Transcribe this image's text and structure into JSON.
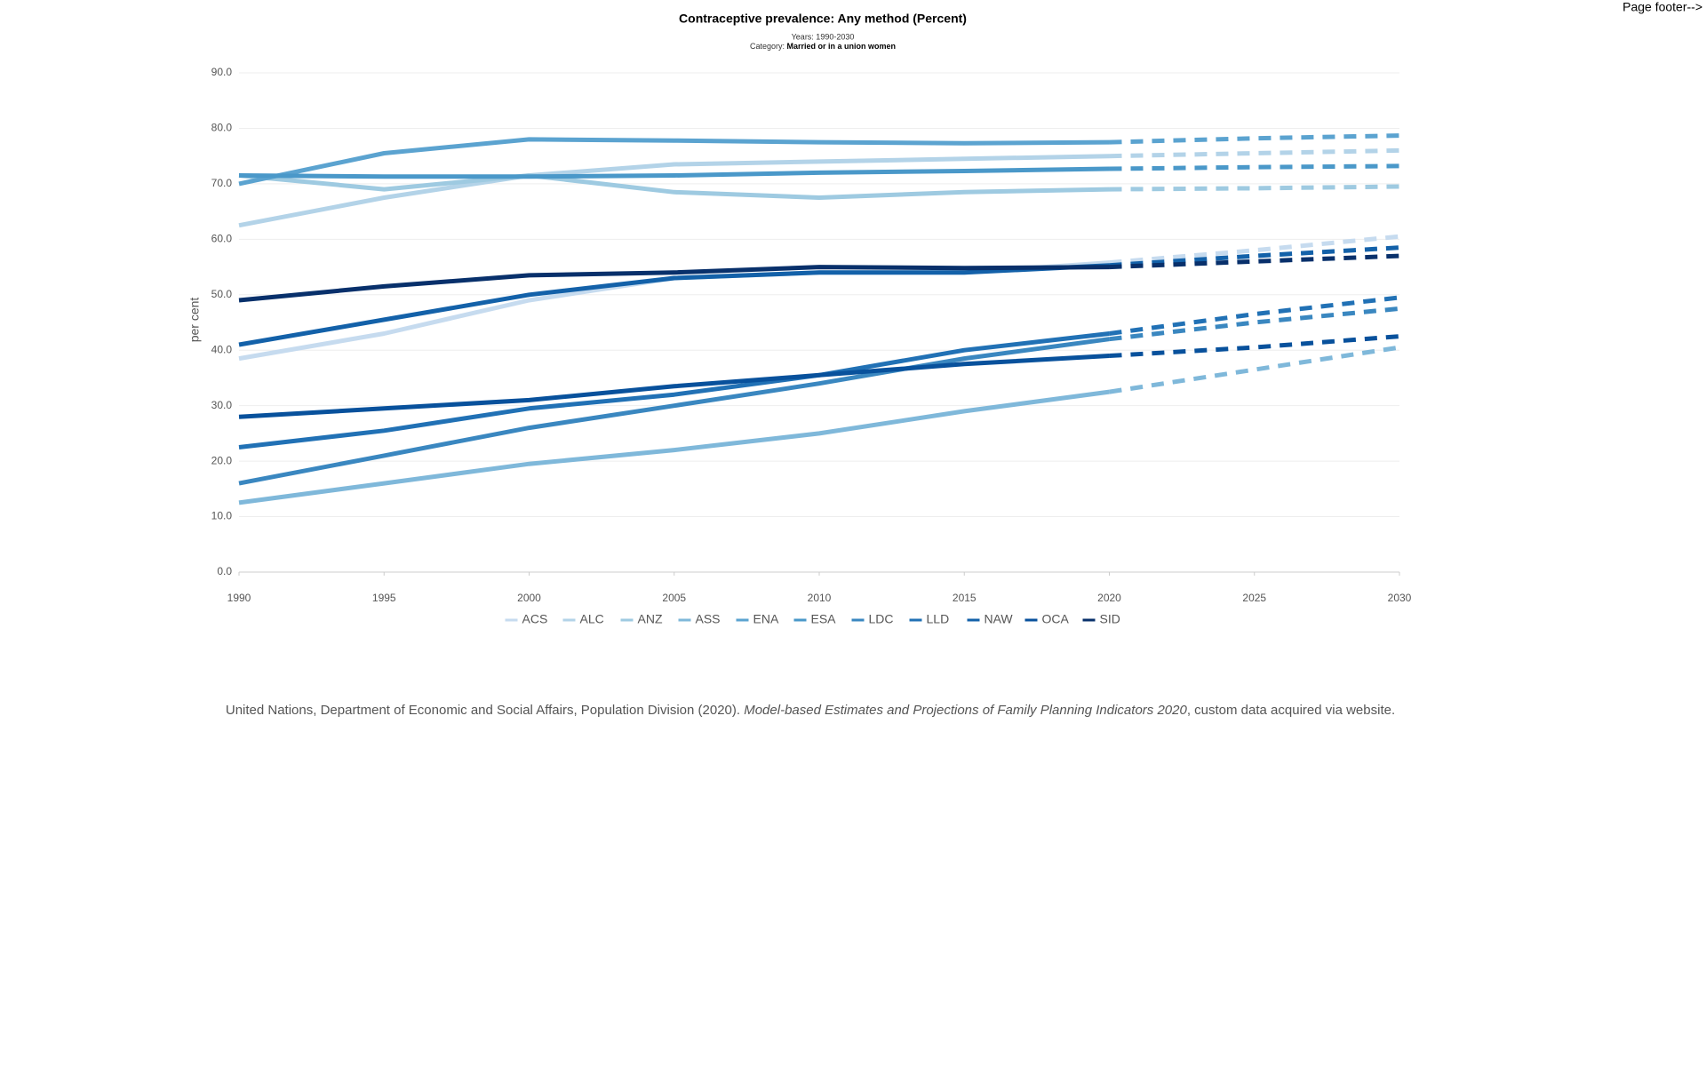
{
  "page_footer": "Page footer-->",
  "chart_data": {
    "type": "line",
    "title": "Contraceptive prevalence: Any method (Percent)",
    "subtitle": "Years: 1990-2030",
    "category_label": "Category:",
    "category": "Married or in a union women",
    "y_label": "per cent",
    "x": [
      1990,
      1995,
      2000,
      2005,
      2010,
      2015,
      2020,
      2025,
      2030
    ],
    "projection_from": 2020,
    "xlim": [
      1990,
      2030
    ],
    "xticks": [
      1990,
      1995,
      2000,
      2005,
      2010,
      2015,
      2020,
      2025,
      2030
    ],
    "ylim": [
      0,
      90
    ],
    "yticks": [
      {
        "value": 0,
        "label": "0.0"
      },
      {
        "value": 10,
        "label": "10.0"
      },
      {
        "value": 20,
        "label": "20.0"
      },
      {
        "value": 30,
        "label": "30.0"
      },
      {
        "value": 40,
        "label": "40.0"
      },
      {
        "value": 50,
        "label": "50.0"
      },
      {
        "value": 60,
        "label": "60.0"
      },
      {
        "value": 70,
        "label": "70.0"
      },
      {
        "value": 80,
        "label": "80.0"
      },
      {
        "value": 90,
        "label": "90.0"
      }
    ],
    "grid": true,
    "series": [
      {
        "name": "ACS",
        "color": "#c6dbef",
        "values": [
          38.5,
          43,
          49,
          53,
          54,
          54,
          55.8,
          58,
          60.5
        ]
      },
      {
        "name": "ALC",
        "color": "#b3d3e8",
        "values": [
          62.5,
          67.5,
          71.5,
          73.5,
          74,
          74.5,
          75,
          75.5,
          76
        ]
      },
      {
        "name": "ANZ",
        "color": "#9ecae1",
        "values": [
          71.5,
          69,
          71.5,
          68.5,
          67.5,
          68.5,
          69,
          69.2,
          69.5
        ]
      },
      {
        "name": "ASS",
        "color": "#7fb8da",
        "values": [
          12.5,
          16,
          19.5,
          22,
          25,
          29,
          32.5,
          36.5,
          40.5
        ]
      },
      {
        "name": "ENA",
        "color": "#5ba3d0",
        "values": [
          70,
          75.5,
          78,
          77.8,
          77.5,
          77.3,
          77.5,
          78.2,
          78.7
        ]
      },
      {
        "name": "ESA",
        "color": "#4a98c9",
        "values": [
          71.5,
          71.3,
          71.3,
          71.5,
          72,
          72.3,
          72.7,
          73,
          73.2
        ]
      },
      {
        "name": "LDC",
        "color": "#3a87c0",
        "values": [
          16,
          21,
          26,
          30,
          34,
          38.5,
          42,
          45,
          47.5
        ]
      },
      {
        "name": "LLD",
        "color": "#2171b5",
        "values": [
          22.5,
          25.5,
          29.5,
          32,
          35.5,
          40,
          43,
          46.5,
          49.5
        ]
      },
      {
        "name": "NAW",
        "color": "#1361a9",
        "values": [
          41,
          45.5,
          50,
          53,
          54,
          54,
          55.3,
          57,
          58.5
        ]
      },
      {
        "name": "OCA",
        "color": "#08519c",
        "values": [
          28,
          29.5,
          31,
          33.5,
          35.5,
          37.5,
          39,
          40.5,
          42.5
        ]
      },
      {
        "name": "SID",
        "color": "#08306b",
        "values": [
          49,
          51.5,
          53.5,
          54,
          55,
          54.8,
          55,
          56,
          57
        ]
      }
    ],
    "source": {
      "before": "United Nations, Department of Economic and Social Affairs, Population Division (2020). ",
      "title": "Model-based Estimates and Projections of Family Planning Indicators 2020",
      "after": ", custom data acquired via website."
    }
  }
}
